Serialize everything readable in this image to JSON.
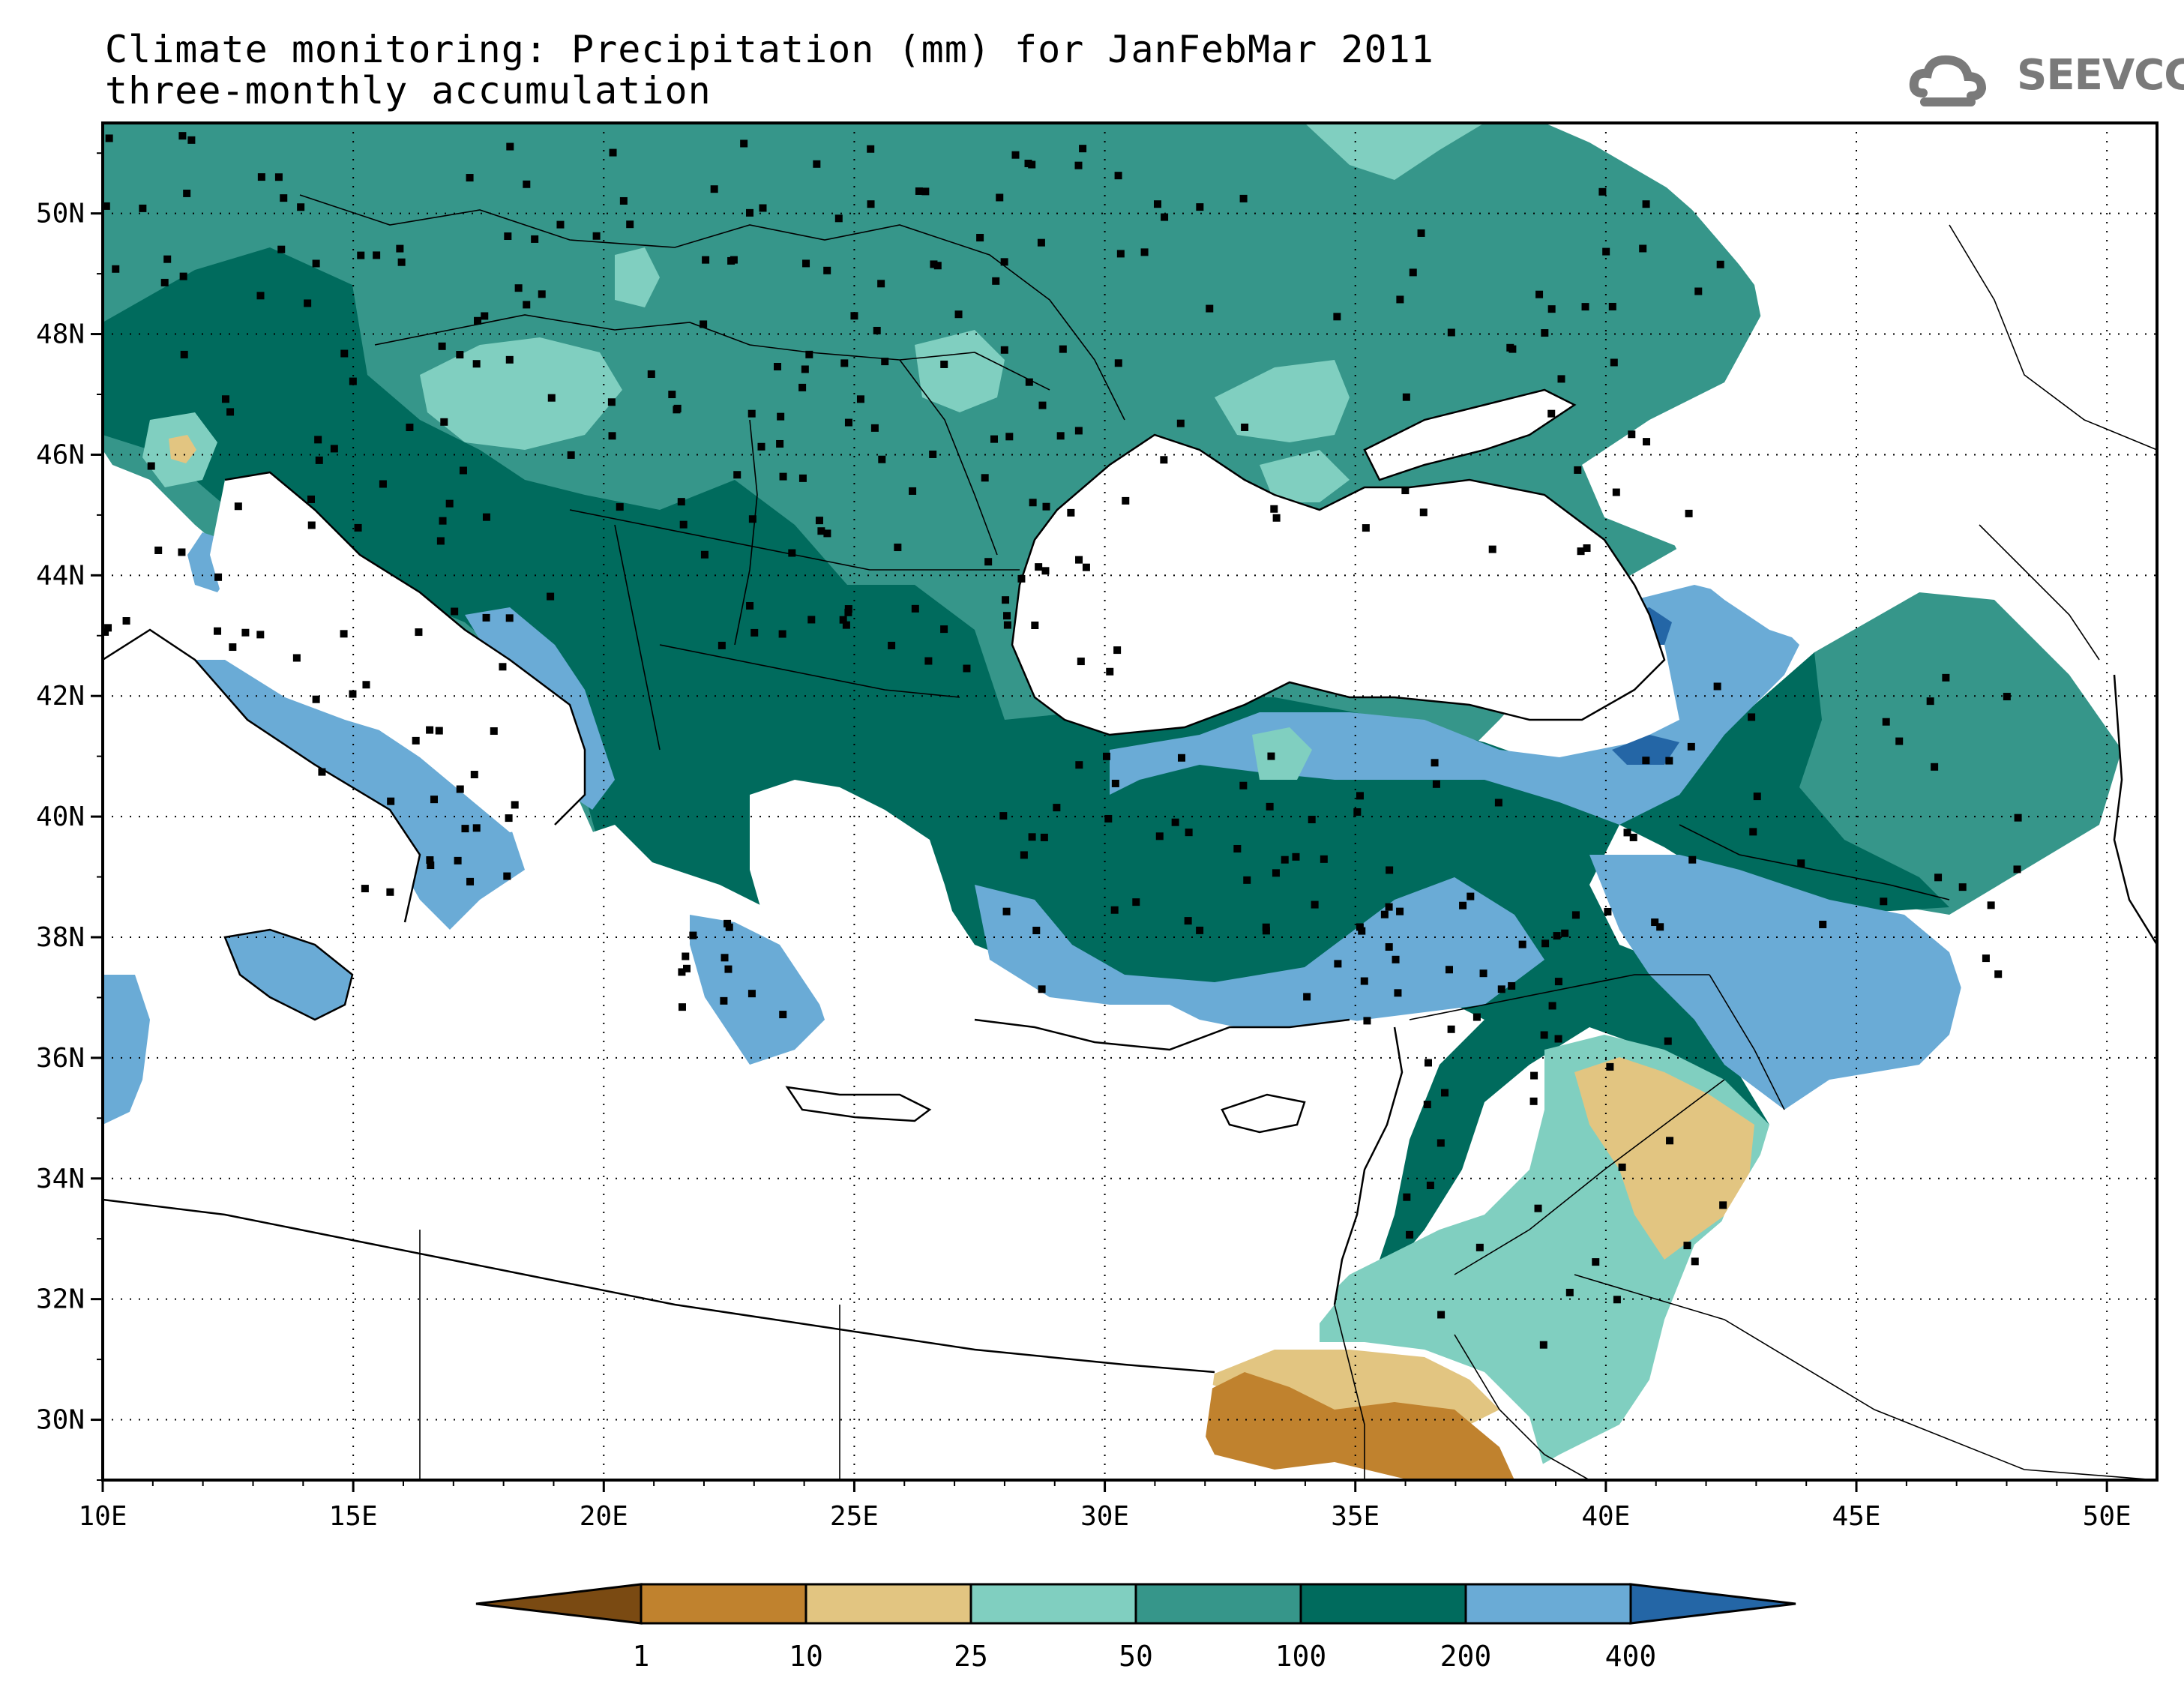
{
  "title": {
    "line1": "Climate monitoring: Precipitation (mm) for JanFebMar 2011",
    "line2": "three-monthly accumulation"
  },
  "logo": {
    "text": "SEEVCCC",
    "icon": "cloud-icon",
    "color": "#7a7a7a"
  },
  "map": {
    "lon_range": [
      10,
      51
    ],
    "lat_range": [
      29,
      51.5
    ],
    "x_ticks": [
      "10E",
      "15E",
      "20E",
      "25E",
      "30E",
      "35E",
      "40E",
      "45E",
      "50E"
    ],
    "y_ticks": [
      "30N",
      "32N",
      "34N",
      "36N",
      "38N",
      "40N",
      "42N",
      "44N",
      "46N",
      "48N",
      "50N"
    ],
    "grid": "dotted",
    "station_marker": "black-square"
  },
  "colorbar": {
    "labels": [
      "1",
      "10",
      "25",
      "50",
      "100",
      "200",
      "400"
    ],
    "colors": [
      "#7a4a12",
      "#c0822e",
      "#e2c581",
      "#80cfc0",
      "#36968a",
      "#006b5d",
      "#6aabd6",
      "#2466a6"
    ]
  }
}
